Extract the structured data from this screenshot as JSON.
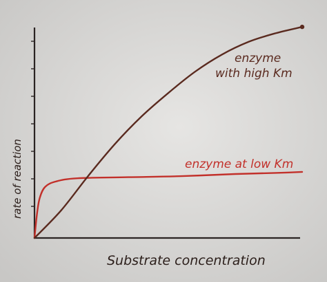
{
  "chart_data": {
    "type": "line",
    "xlabel": "Substrate concentration",
    "ylabel": "rate of reaction",
    "title": "",
    "grid": false,
    "series": [
      {
        "name": "enzyme at low Km",
        "color": "#c2302a",
        "label_lines": [
          "enzyme at low Km"
        ],
        "points": [
          [
            0.0,
            0.0
          ],
          [
            0.01,
            0.12
          ],
          [
            0.02,
            0.19
          ],
          [
            0.04,
            0.24
          ],
          [
            0.08,
            0.265
          ],
          [
            0.16,
            0.28
          ],
          [
            0.35,
            0.285
          ],
          [
            0.55,
            0.29
          ],
          [
            0.75,
            0.3
          ],
          [
            0.9,
            0.305
          ],
          [
            1.0,
            0.31
          ]
        ]
      },
      {
        "name": "enzyme with high Km",
        "color": "#5a2a1f",
        "label_lines": [
          "enzyme",
          "with high Km"
        ],
        "points": [
          [
            0.0,
            0.0
          ],
          [
            0.1,
            0.13
          ],
          [
            0.2,
            0.29
          ],
          [
            0.3,
            0.44
          ],
          [
            0.4,
            0.57
          ],
          [
            0.5,
            0.68
          ],
          [
            0.6,
            0.78
          ],
          [
            0.7,
            0.86
          ],
          [
            0.8,
            0.92
          ],
          [
            0.9,
            0.96
          ],
          [
            1.0,
            0.99
          ]
        ]
      }
    ],
    "xlim": [
      0,
      1
    ],
    "ylim": [
      0,
      1
    ]
  }
}
